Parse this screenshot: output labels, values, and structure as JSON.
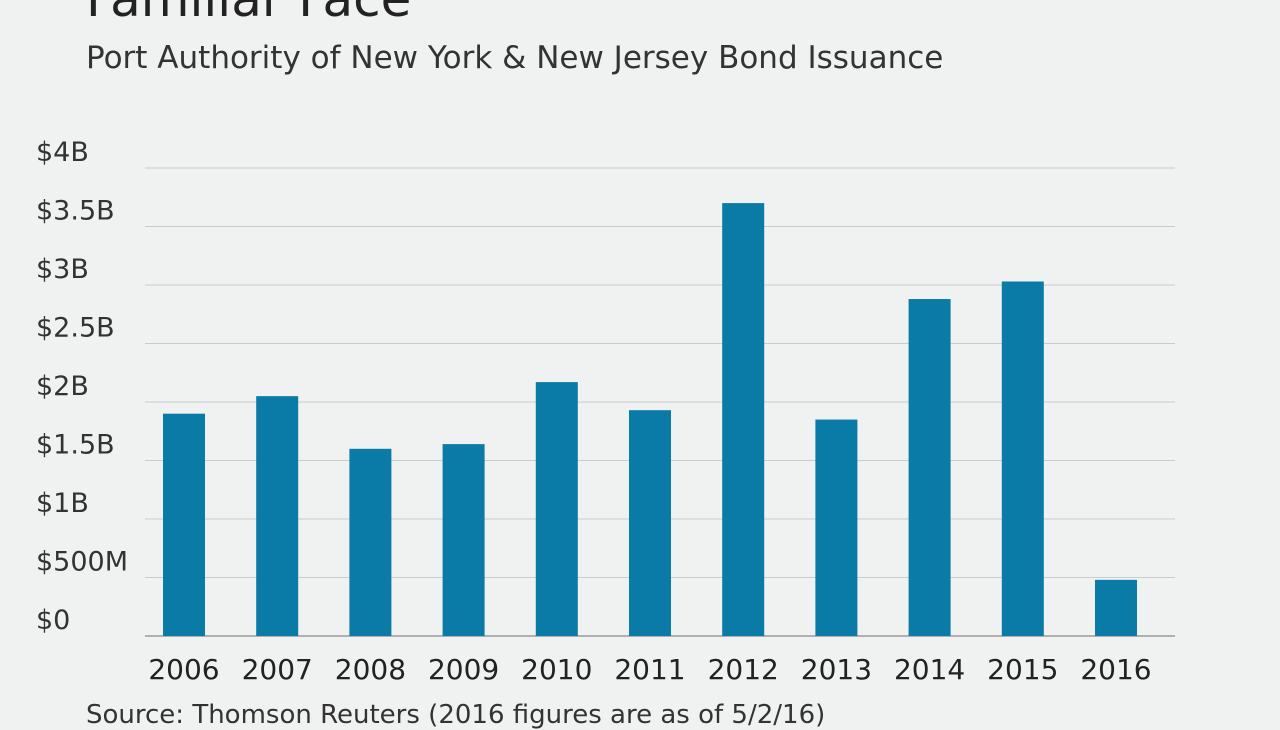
{
  "header": {
    "title": "Familiar Face",
    "subtitle": "Port Authority of New York & New Jersey Bond Issuance"
  },
  "footer": {
    "source": "Source: Thomson Reuters (2016 figures are as of 5/2/16)"
  },
  "colors": {
    "bar": "#0a7aa6",
    "grid": "#c9cccd",
    "axis": "#9a9a9a",
    "text": "#333333",
    "background": "#f0f1f1"
  },
  "chart_data": {
    "type": "bar",
    "title": "Familiar Face",
    "subtitle": "Port Authority of New York & New Jersey Bond Issuance",
    "xlabel": "",
    "ylabel": "",
    "unit": "USD billions",
    "categories": [
      "2006",
      "2007",
      "2008",
      "2009",
      "2010",
      "2011",
      "2012",
      "2013",
      "2014",
      "2015",
      "2016"
    ],
    "values": [
      1.9,
      2.05,
      1.6,
      1.64,
      2.17,
      1.93,
      3.7,
      1.85,
      2.88,
      3.03,
      0.48
    ],
    "ylim": [
      0,
      4
    ],
    "yticks": [
      0,
      0.5,
      1,
      1.5,
      2,
      2.5,
      3,
      3.5,
      4
    ],
    "ytick_labels": [
      "$0",
      "$500M",
      "$1B",
      "$1.5B",
      "$2B",
      "$2.5B",
      "$3B",
      "$3.5B",
      "$4B"
    ],
    "grid": true,
    "legend": "none"
  }
}
